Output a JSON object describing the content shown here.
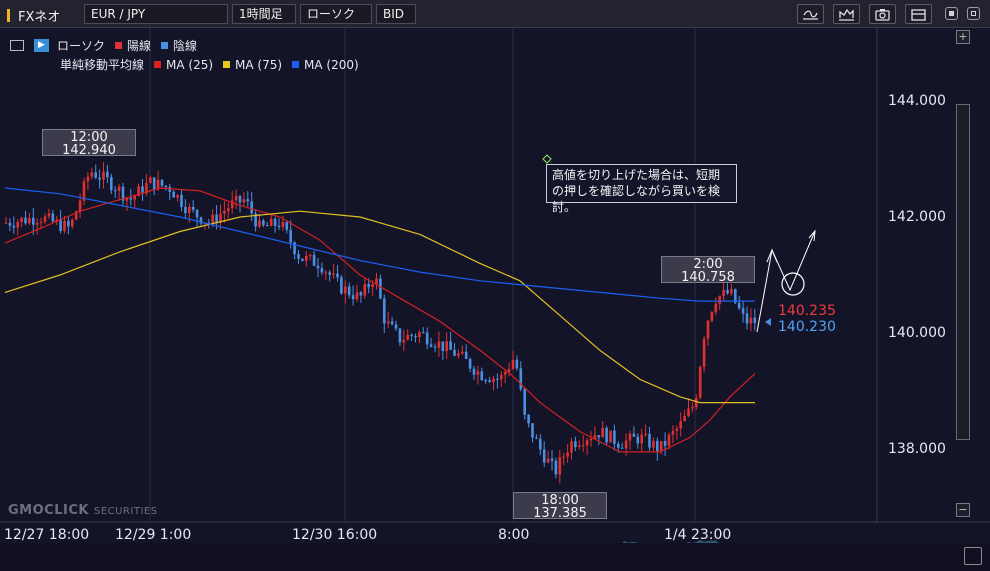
{
  "toolbar": {
    "app_name": "FXネオ",
    "pair": "EUR / JPY",
    "interval": "1時間足",
    "chart_type": "ローソク",
    "price_side": "BID"
  },
  "legend": {
    "candle_label": "ローソク",
    "up_label": "陽線",
    "down_label": "陰線",
    "sma_label": "単純移動平均線",
    "ma25": "MA (25)",
    "ma75": "MA (75)",
    "ma200": "MA (200)"
  },
  "colors": {
    "up": "#e03030",
    "down": "#4a90e2",
    "ma25": "#d42020",
    "ma75": "#e0c020",
    "ma200": "#1a5ff0",
    "background": "#141428"
  },
  "price_axis": [
    "144.000",
    "142.000",
    "140.000",
    "138.000"
  ],
  "time_axis": [
    "12/27 18:00",
    "12/29 1:00",
    "12/30 16:00",
    "8:00",
    "1/4 23:00"
  ],
  "high_labels": [
    {
      "time": "12:00",
      "price": "142.940"
    },
    {
      "time": "2:00",
      "price": "140.758"
    }
  ],
  "low_label": {
    "time": "18:00",
    "price": "137.385"
  },
  "current": {
    "ask": "140.235",
    "bid": "140.230"
  },
  "annotation": "高値を切り上げた場合は、短期の押しを確認しながら買いを検討。",
  "watermark": {
    "brand": "GMOCLICK",
    "suffix": "SECURITIES"
  },
  "icons": [
    "toolbar-indicator-icon",
    "toolbar-draw-icon",
    "camera-icon",
    "window-icon",
    "minimize-icon",
    "close-icon"
  ]
}
